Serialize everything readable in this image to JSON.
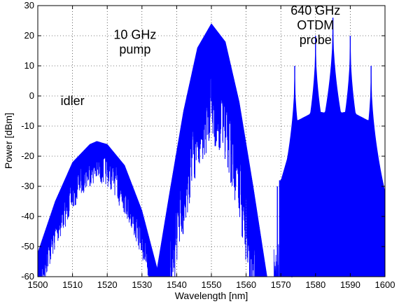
{
  "chart_data": {
    "type": "line",
    "title": "",
    "xlabel": "Wavelength [nm]",
    "ylabel": "Power [dBm]",
    "xlim": [
      1500,
      1600
    ],
    "ylim": [
      -60,
      30
    ],
    "xticks": [
      1500,
      1510,
      1520,
      1530,
      1540,
      1550,
      1560,
      1570,
      1580,
      1590,
      1600
    ],
    "yticks": [
      -60,
      -50,
      -40,
      -30,
      -20,
      -10,
      0,
      10,
      20,
      30
    ],
    "grid": true,
    "legend": "none",
    "series_color": "#0000ff",
    "annotations": [
      {
        "id": "idler",
        "lines": [
          "idler"
        ],
        "x": 1510,
        "y": -3
      },
      {
        "id": "pump",
        "lines": [
          "10 GHz",
          "pump"
        ],
        "x": 1528,
        "y": 19
      },
      {
        "id": "probe",
        "lines": [
          "640 GHz",
          "OTDM",
          "probe"
        ],
        "x": 1580,
        "y": 27
      }
    ],
    "series": [
      {
        "component": "idler",
        "x_range": [
          1500,
          1535
        ],
        "center_nm": 1517,
        "peak_dbm": -15,
        "envelope_x": [
          1500,
          1505,
          1510,
          1515,
          1517,
          1520,
          1525,
          1530,
          1535
        ],
        "envelope_y": [
          -52,
          -35,
          -22,
          -16,
          -15,
          -16,
          -23,
          -38,
          -60
        ]
      },
      {
        "component": "10 GHz pump",
        "x_range": [
          1534,
          1566
        ],
        "center_nm": 1550,
        "peak_dbm": 24,
        "envelope_x": [
          1534,
          1538,
          1542,
          1546,
          1550,
          1554,
          1558,
          1562,
          1566
        ],
        "envelope_y": [
          -60,
          -32,
          -5,
          16,
          24,
          18,
          -2,
          -30,
          -60
        ]
      },
      {
        "component": "640 GHz OTDM probe",
        "x_range": [
          1568,
          1600
        ],
        "spike_x": [
          1569,
          1574,
          1580,
          1585,
          1590,
          1596
        ],
        "spike_y": [
          -30,
          10,
          20,
          26,
          20,
          10
        ],
        "floor_x": [
          1570,
          1575,
          1580,
          1585,
          1590,
          1595,
          1600
        ],
        "floor_y": [
          -28,
          -8,
          -5,
          -6,
          -5,
          -8,
          -40
        ]
      }
    ]
  }
}
